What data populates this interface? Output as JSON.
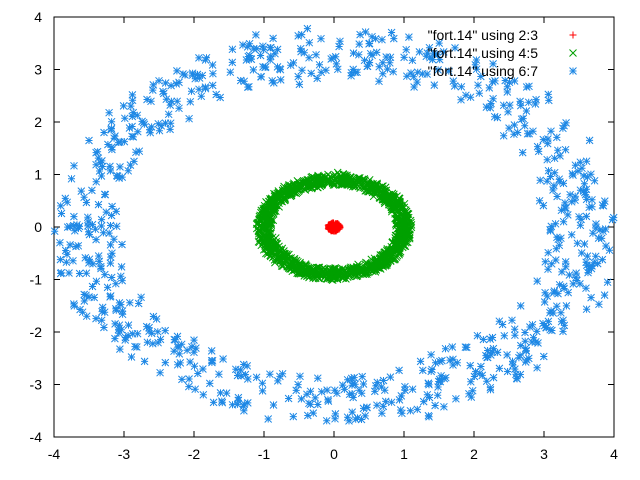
{
  "chart_data": {
    "type": "scatter",
    "xlim": [
      -4,
      4
    ],
    "ylim": [
      -4,
      4
    ],
    "x_ticks": [
      -4,
      -3,
      -2,
      -1,
      0,
      1,
      2,
      3,
      4
    ],
    "y_ticks": [
      -4,
      -3,
      -2,
      -1,
      0,
      1,
      2,
      3,
      4
    ],
    "grid": false,
    "legend_position": "top-right",
    "series": [
      {
        "name": "\"fort.14\" using 2:3",
        "color": "#ff0000",
        "marker": "plus",
        "shape": "cluster",
        "center": [
          0.0,
          0.0
        ],
        "radius_x": 0.09,
        "radius_y": 0.08,
        "count": 120
      },
      {
        "name": "\"fort.14\" using 4:5",
        "color": "#00a000",
        "marker": "cross",
        "shape": "ring",
        "center": [
          0.0,
          0.0
        ],
        "radius_x": 1.0,
        "radius_y": 0.9,
        "width": 0.2,
        "count": 1400
      },
      {
        "name": "\"fort.14\" using 6:7",
        "color": "#1e88e5",
        "marker": "star",
        "shape": "ring",
        "center": [
          0.0,
          0.0
        ],
        "radius_x": 3.55,
        "radius_y": 3.3,
        "width": 0.9,
        "count": 800
      }
    ]
  }
}
